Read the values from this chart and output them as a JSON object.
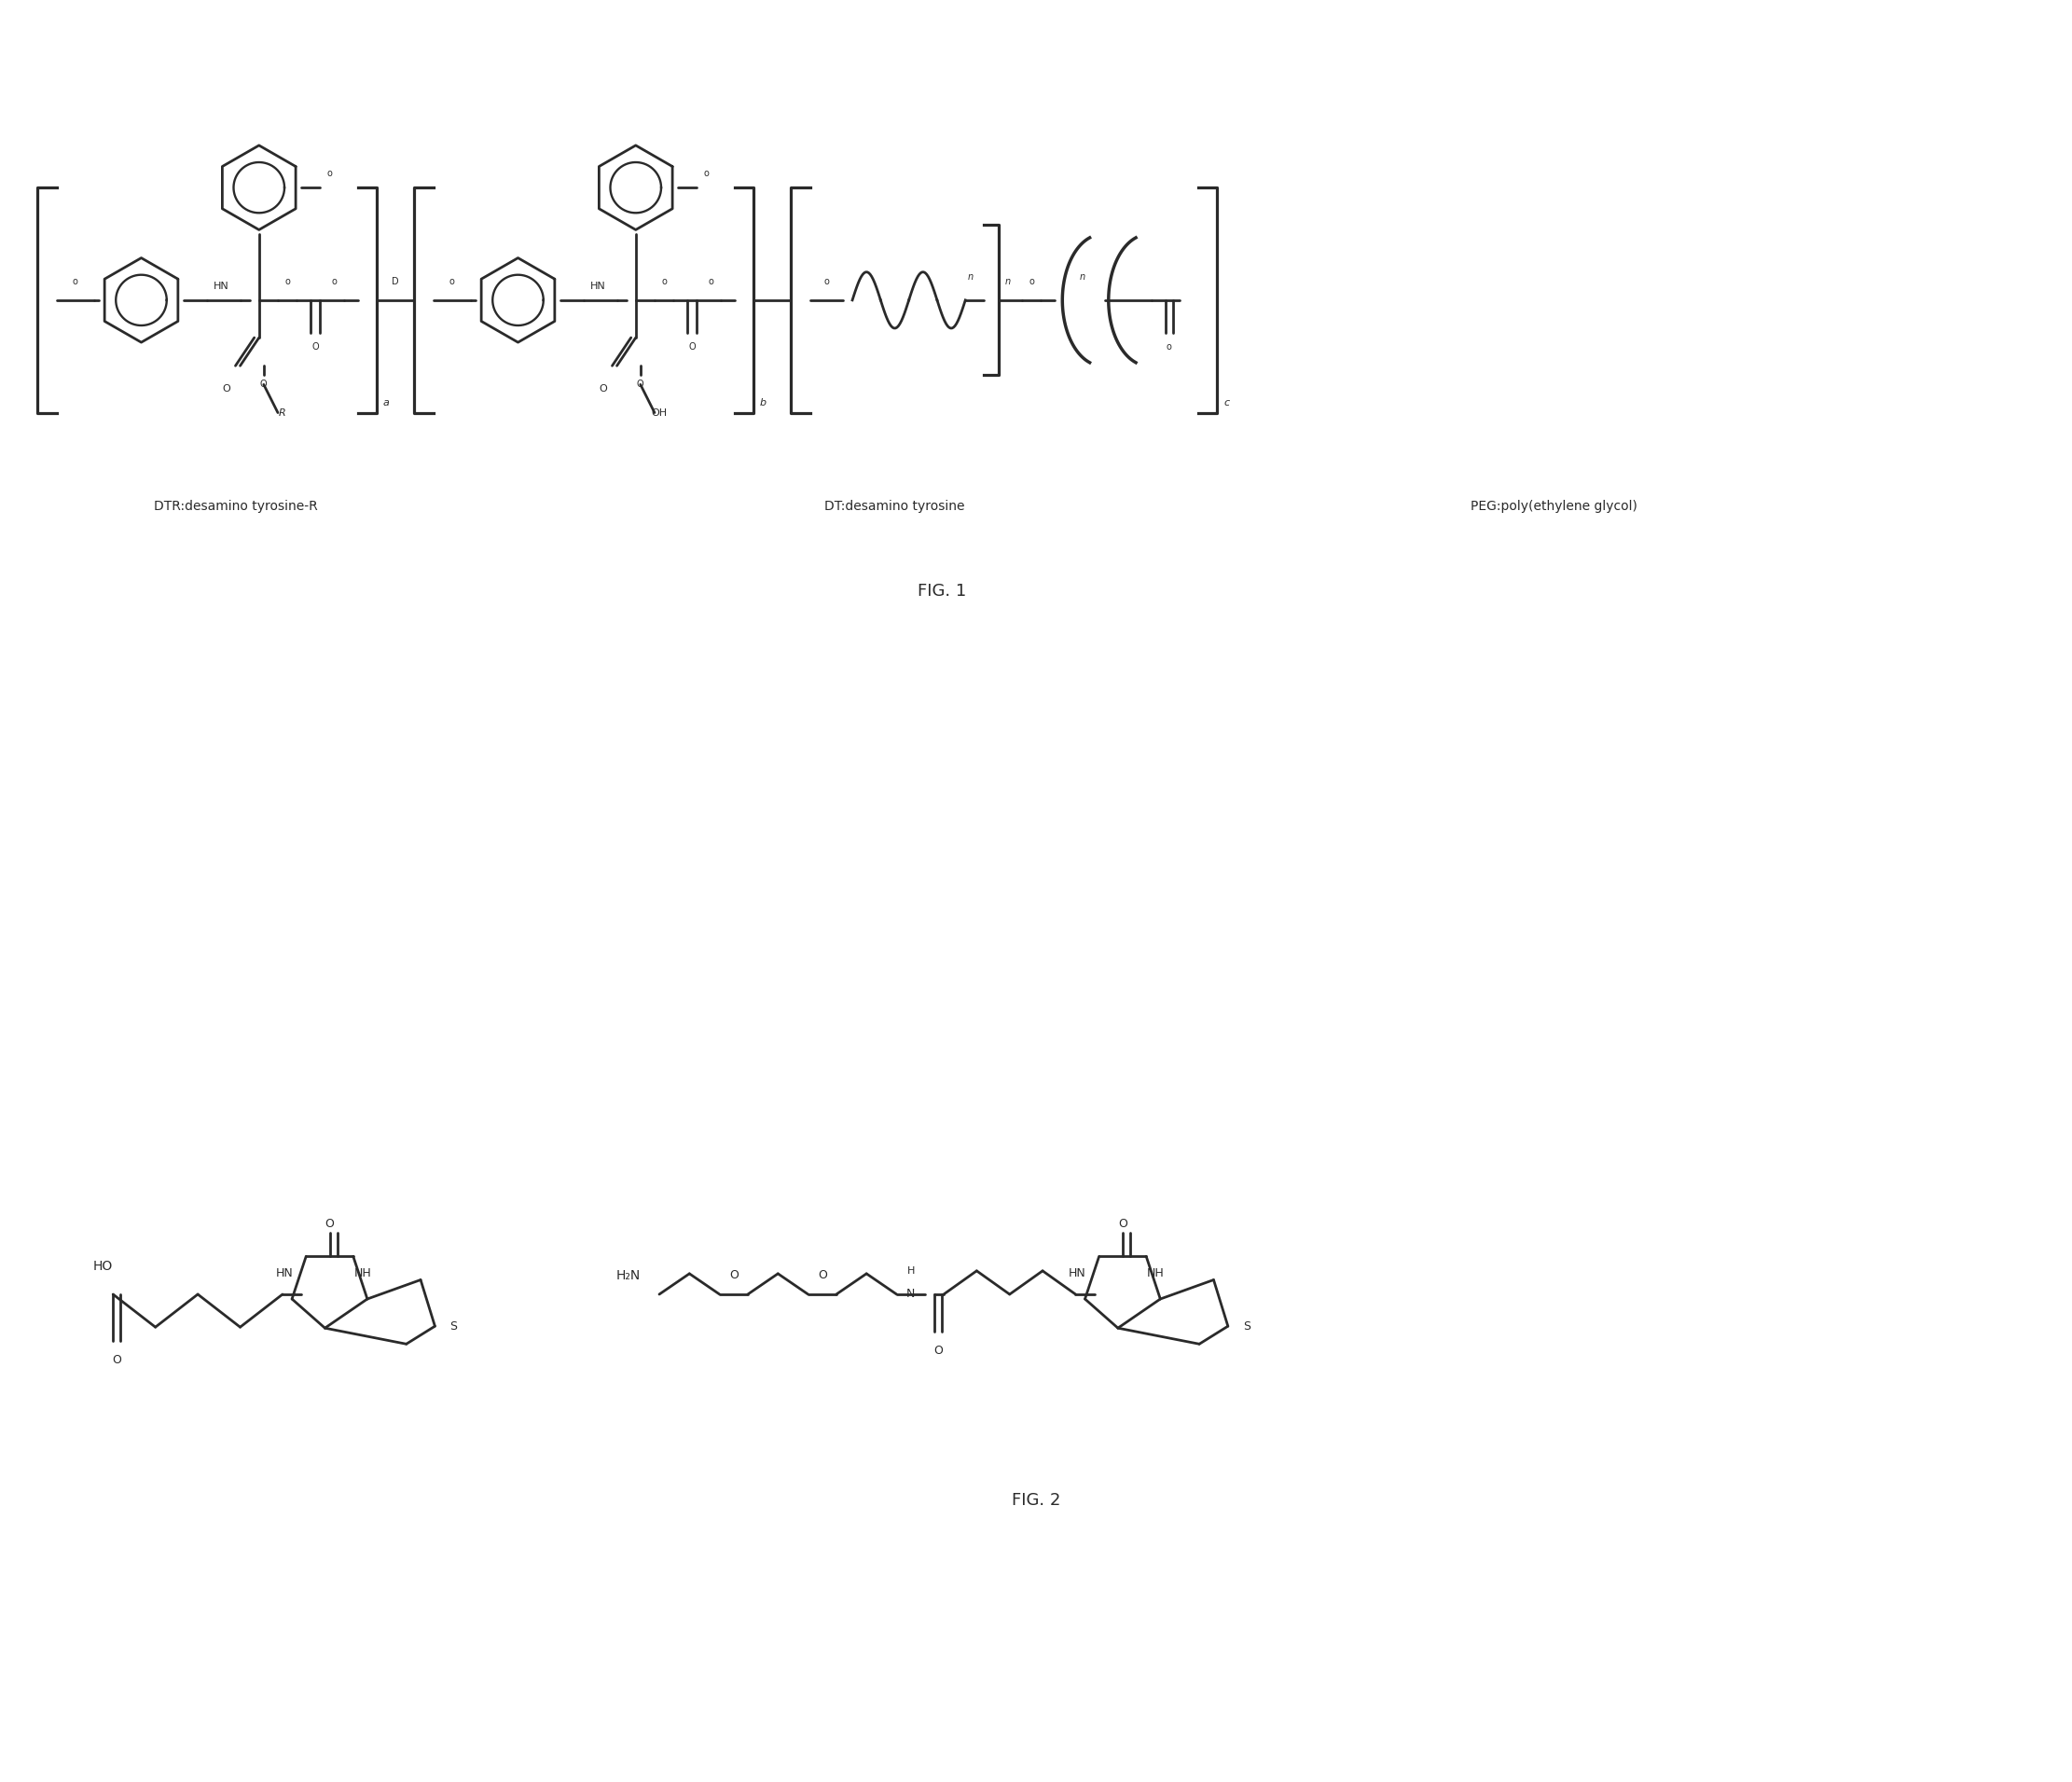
{
  "background_color": "#ffffff",
  "fig_width": 22.22,
  "fig_height": 19.11,
  "fig1_label": "FIG. 1",
  "fig2_label": "FIG. 2",
  "label1": "DTR:desamino tyrosine-R",
  "label2": "DT:desamino tyrosine",
  "label3": "PEG:poly(ethylene glycol)",
  "line_color": "#2a2a2a",
  "line_width": 2.0,
  "text_color": "#2a2a2a"
}
